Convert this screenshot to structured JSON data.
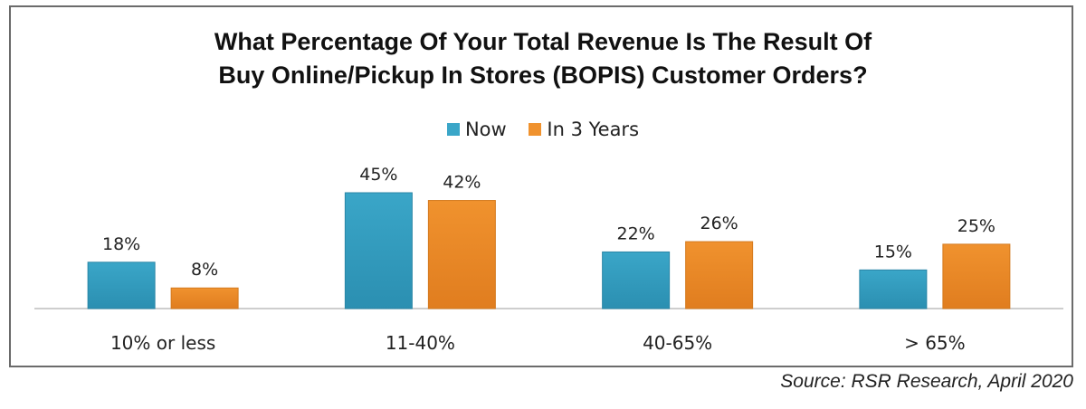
{
  "chart_data": {
    "type": "bar",
    "title_lines": [
      "What Percentage Of Your Total Revenue Is The Result Of",
      "Buy Online/Pickup In Stores (BOPIS) Customer Orders?"
    ],
    "categories": [
      "10% or less",
      "11-40%",
      "40-65%",
      "> 65%"
    ],
    "series": [
      {
        "name": "Now",
        "values": [
          18,
          45,
          22,
          15
        ],
        "labels": [
          "18%",
          "45%",
          "22%",
          "15%"
        ],
        "color": "#3aa6c8"
      },
      {
        "name": "In 3 Years",
        "values": [
          8,
          42,
          26,
          25
        ],
        "labels": [
          "8%",
          "42%",
          "26%",
          "25%"
        ],
        "color": "#f0922e"
      }
    ],
    "ylim": [
      0,
      50
    ],
    "grid": false,
    "legend_position": "top-center"
  },
  "source": "Source: RSR Research, April 2020"
}
